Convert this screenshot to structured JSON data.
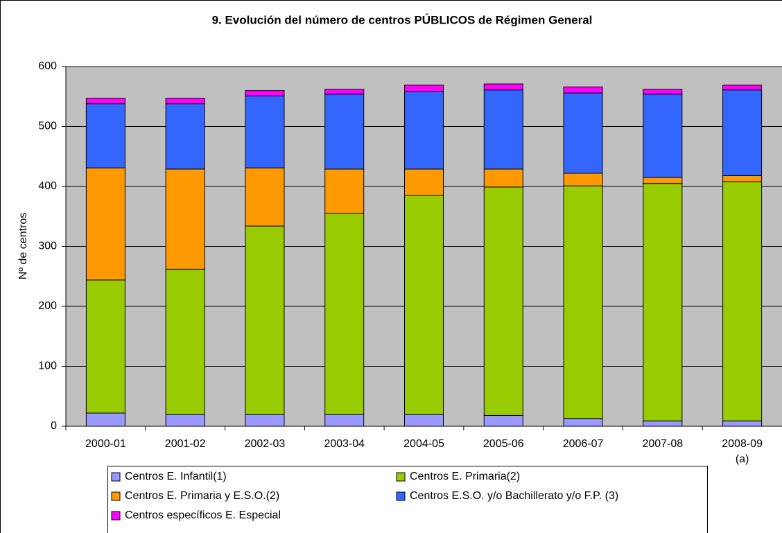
{
  "chart_data": {
    "type": "stacked_bar",
    "title": "9. Evolución del número de centros PÚBLICOS de Régimen General",
    "y_label": "Nº de centros",
    "categories": [
      "2000-01",
      "2001-02",
      "2002-03",
      "2003-04",
      "2004-05",
      "2005-06",
      "2006-07",
      "2007-08",
      "2008-09 (a)"
    ],
    "series": [
      {
        "name": "Centros E. Infantil(1)",
        "color": "#9999ff",
        "values": [
          22,
          20,
          20,
          20,
          20,
          18,
          13,
          9,
          9
        ]
      },
      {
        "name": "Centros E. Primaria(2)",
        "color": "#99cc00",
        "values": [
          222,
          242,
          314,
          335,
          365,
          381,
          388,
          396,
          399
        ]
      },
      {
        "name": "Centros E. Primaria y E.S.O.(2)",
        "color": "#ff9900",
        "values": [
          187,
          167,
          97,
          74,
          44,
          30,
          21,
          10,
          10
        ]
      },
      {
        "name": "Centros E.S.O. y/o Bachillerato y/o F.P. (3)",
        "color": "#3366ff",
        "values": [
          107,
          109,
          120,
          125,
          129,
          132,
          134,
          139,
          143
        ]
      },
      {
        "name": "Centros específicos E. Especial",
        "color": "#ff00ff",
        "values": [
          9,
          9,
          9,
          8,
          11,
          10,
          10,
          8,
          8
        ]
      }
    ],
    "ylim": [
      0,
      600
    ],
    "yticks": [
      0,
      100,
      200,
      300,
      400,
      500,
      600
    ],
    "grid": true
  }
}
